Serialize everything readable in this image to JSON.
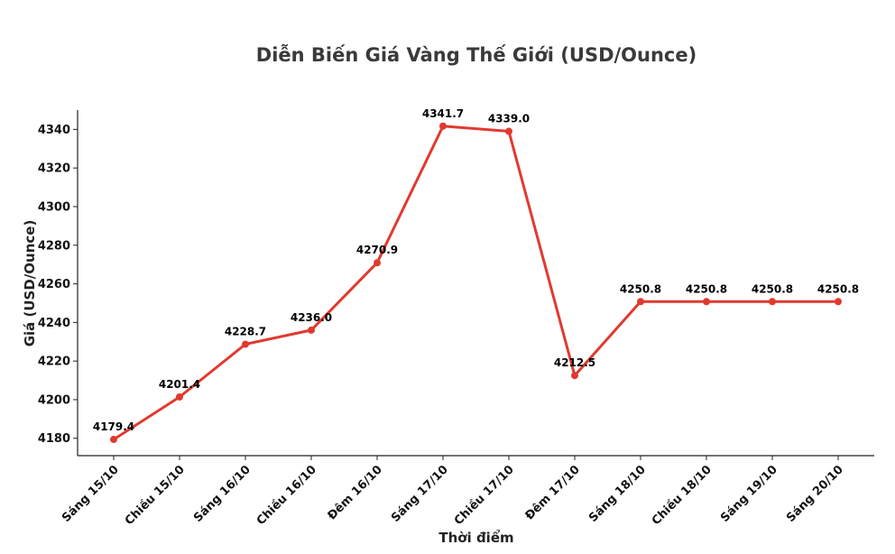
{
  "chart_data": {
    "type": "line",
    "title": "Diễn Biến Giá Vàng Thế Giới (USD/Ounce)",
    "xlabel": "Thời điểm",
    "ylabel": "Giá (USD/Ounce)",
    "categories": [
      "Sáng 15/10",
      "Chiều 15/10",
      "Sáng 16/10",
      "Chiều 16/10",
      "Đêm 16/10",
      "Sáng 17/10",
      "Chiều 17/10",
      "Đêm 17/10",
      "Sáng 18/10",
      "Chiều 18/10",
      "Sáng 19/10",
      "Sáng 20/10"
    ],
    "values": [
      4179.4,
      4201.4,
      4228.7,
      4236.0,
      4270.9,
      4341.7,
      4339.0,
      4212.5,
      4250.8,
      4250.8,
      4250.8,
      4250.8
    ],
    "value_labels": [
      "4179.4",
      "4201.4",
      "4228.7",
      "4236.0",
      "4270.9",
      "4341.7",
      "4339.0",
      "4212.5",
      "4250.8",
      "4250.8",
      "4250.8",
      "4250.8"
    ],
    "yticks": [
      4180,
      4200,
      4220,
      4240,
      4260,
      4280,
      4300,
      4320,
      4340
    ],
    "ylim": [
      4171,
      4350
    ],
    "grid": false,
    "line_color": "#e03a2f"
  }
}
